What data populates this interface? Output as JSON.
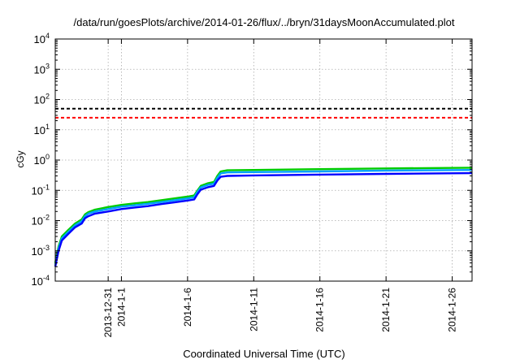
{
  "chart_data": {
    "type": "line",
    "title": "/data/run/goesPlots/archive/2014-01-26/flux/../bryn/31daysMoonAccumulated.plot",
    "xlabel": "Coordinated Universal Time (UTC)",
    "ylabel": "cGy",
    "yscale": "log",
    "ylim": [
      0.0001,
      10000
    ],
    "xlim": [
      "2013-12-27",
      "2014-01-27T12:00"
    ],
    "x_ticks": [
      {
        "date": "2013-12-31",
        "label": "2013-12-31"
      },
      {
        "date": "2014-01-01",
        "label": "2014-1-1"
      },
      {
        "date": "2014-01-06",
        "label": "2014-1-6"
      },
      {
        "date": "2014-01-11",
        "label": "2014-1-11"
      },
      {
        "date": "2014-01-16",
        "label": "2014-1-16"
      },
      {
        "date": "2014-01-21",
        "label": "2014-1-21"
      },
      {
        "date": "2014-01-26",
        "label": "2014-1-26"
      }
    ],
    "y_ticks": [
      {
        "value": 0.0001,
        "base": "10",
        "exp": "-4"
      },
      {
        "value": 0.001,
        "base": "10",
        "exp": "-3"
      },
      {
        "value": 0.01,
        "base": "10",
        "exp": "-2"
      },
      {
        "value": 0.1,
        "base": "10",
        "exp": "-1"
      },
      {
        "value": 1,
        "base": "10",
        "exp": "0"
      },
      {
        "value": 10,
        "base": "10",
        "exp": "1"
      },
      {
        "value": 100,
        "base": "10",
        "exp": "2"
      },
      {
        "value": 1000,
        "base": "10",
        "exp": "3"
      },
      {
        "value": 10000,
        "base": "10",
        "exp": "4"
      }
    ],
    "grid": true,
    "legend": "none",
    "reference_lines": [
      {
        "value": 50,
        "color": "#000000",
        "style": "dashed"
      },
      {
        "value": 25,
        "color": "#ff0000",
        "style": "dashed"
      }
    ],
    "series": [
      {
        "color": "#00cc00",
        "points": [
          [
            "2013-12-27T00:00",
            0.0004
          ],
          [
            "2013-12-27T06:00",
            0.0014
          ],
          [
            "2013-12-27T12:00",
            0.003
          ],
          [
            "2013-12-28T00:00",
            0.005
          ],
          [
            "2013-12-28T12:00",
            0.008
          ],
          [
            "2013-12-29T00:00",
            0.011
          ],
          [
            "2013-12-29T06:00",
            0.016
          ],
          [
            "2013-12-29T12:00",
            0.019
          ],
          [
            "2013-12-30T00:00",
            0.023
          ],
          [
            "2013-12-31T00:00",
            0.028
          ],
          [
            "2014-01-01T00:00",
            0.033
          ],
          [
            "2014-01-02T00:00",
            0.037
          ],
          [
            "2014-01-03T00:00",
            0.041
          ],
          [
            "2014-01-04T00:00",
            0.047
          ],
          [
            "2014-01-05T00:00",
            0.054
          ],
          [
            "2014-01-06T00:00",
            0.062
          ],
          [
            "2014-01-06T12:00",
            0.068
          ],
          [
            "2014-01-06T18:00",
            0.1
          ],
          [
            "2014-01-07T00:00",
            0.14
          ],
          [
            "2014-01-07T12:00",
            0.17
          ],
          [
            "2014-01-08T00:00",
            0.19
          ],
          [
            "2014-01-08T06:00",
            0.3
          ],
          [
            "2014-01-08T12:00",
            0.42
          ],
          [
            "2014-01-09T00:00",
            0.46
          ],
          [
            "2014-01-11T00:00",
            0.47
          ],
          [
            "2014-01-16T00:00",
            0.5
          ],
          [
            "2014-01-21T00:00",
            0.53
          ],
          [
            "2014-01-27T12:00",
            0.56
          ]
        ]
      },
      {
        "color": "#00a0ff",
        "points": [
          [
            "2013-12-27T00:00",
            0.00035
          ],
          [
            "2013-12-27T06:00",
            0.0012
          ],
          [
            "2013-12-27T12:00",
            0.0026
          ],
          [
            "2013-12-28T00:00",
            0.0043
          ],
          [
            "2013-12-28T12:00",
            0.007
          ],
          [
            "2013-12-29T00:00",
            0.0095
          ],
          [
            "2013-12-29T06:00",
            0.014
          ],
          [
            "2013-12-29T12:00",
            0.017
          ],
          [
            "2013-12-30T00:00",
            0.02
          ],
          [
            "2013-12-31T00:00",
            0.024
          ],
          [
            "2014-01-01T00:00",
            0.029
          ],
          [
            "2014-01-02T00:00",
            0.032
          ],
          [
            "2014-01-03T00:00",
            0.036
          ],
          [
            "2014-01-04T00:00",
            0.041
          ],
          [
            "2014-01-05T00:00",
            0.047
          ],
          [
            "2014-01-06T00:00",
            0.054
          ],
          [
            "2014-01-06T12:00",
            0.059
          ],
          [
            "2014-01-06T18:00",
            0.09
          ],
          [
            "2014-01-07T00:00",
            0.125
          ],
          [
            "2014-01-07T12:00",
            0.15
          ],
          [
            "2014-01-08T00:00",
            0.165
          ],
          [
            "2014-01-08T06:00",
            0.26
          ],
          [
            "2014-01-08T12:00",
            0.36
          ],
          [
            "2014-01-09T00:00",
            0.39
          ],
          [
            "2014-01-11T00:00",
            0.4
          ],
          [
            "2014-01-16T00:00",
            0.42
          ],
          [
            "2014-01-21T00:00",
            0.45
          ],
          [
            "2014-01-27T12:00",
            0.47
          ]
        ]
      },
      {
        "color": "#0000ff",
        "points": [
          [
            "2013-12-27T00:00",
            0.0003
          ],
          [
            "2013-12-27T06:00",
            0.001
          ],
          [
            "2013-12-27T12:00",
            0.0022
          ],
          [
            "2013-12-28T00:00",
            0.0037
          ],
          [
            "2013-12-28T12:00",
            0.006
          ],
          [
            "2013-12-29T00:00",
            0.008
          ],
          [
            "2013-12-29T06:00",
            0.012
          ],
          [
            "2013-12-29T12:00",
            0.014
          ],
          [
            "2013-12-30T00:00",
            0.017
          ],
          [
            "2013-12-31T00:00",
            0.02
          ],
          [
            "2014-01-01T00:00",
            0.024
          ],
          [
            "2014-01-02T00:00",
            0.027
          ],
          [
            "2014-01-03T00:00",
            0.03
          ],
          [
            "2014-01-04T00:00",
            0.035
          ],
          [
            "2014-01-05T00:00",
            0.04
          ],
          [
            "2014-01-06T00:00",
            0.046
          ],
          [
            "2014-01-06T12:00",
            0.05
          ],
          [
            "2014-01-06T18:00",
            0.075
          ],
          [
            "2014-01-07T00:00",
            0.105
          ],
          [
            "2014-01-07T12:00",
            0.125
          ],
          [
            "2014-01-08T00:00",
            0.14
          ],
          [
            "2014-01-08T06:00",
            0.21
          ],
          [
            "2014-01-08T12:00",
            0.28
          ],
          [
            "2014-01-09T00:00",
            0.3
          ],
          [
            "2014-01-11T00:00",
            0.31
          ],
          [
            "2014-01-16T00:00",
            0.33
          ],
          [
            "2014-01-21T00:00",
            0.35
          ],
          [
            "2014-01-27T12:00",
            0.37
          ]
        ]
      }
    ]
  }
}
